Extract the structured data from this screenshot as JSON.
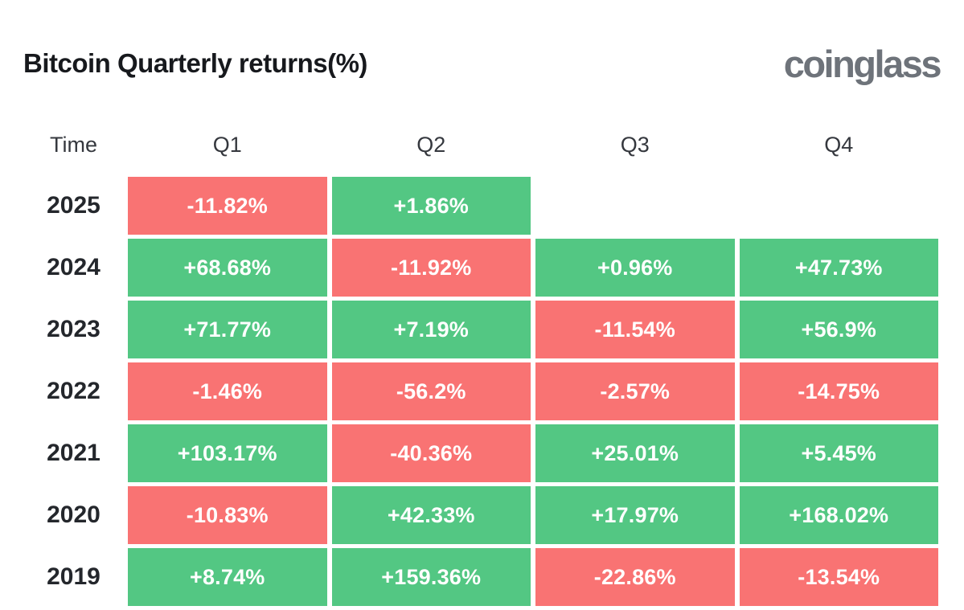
{
  "header": {
    "title": "Bitcoin Quarterly returns(%)",
    "logo_text": "coinglass"
  },
  "colors": {
    "positive": "#53c783",
    "negative": "#f97373",
    "cell_text": "#ffffff",
    "title_text": "#17191d",
    "logo_text": "#6e737a",
    "background": "#ffffff"
  },
  "table": {
    "columns": [
      "Time",
      "Q1",
      "Q2",
      "Q3",
      "Q4"
    ],
    "rows": [
      {
        "year": "2025",
        "cells": [
          {
            "value": "-11.82%",
            "sign": "negative"
          },
          {
            "value": "+1.86%",
            "sign": "positive"
          },
          null,
          null
        ]
      },
      {
        "year": "2024",
        "cells": [
          {
            "value": "+68.68%",
            "sign": "positive"
          },
          {
            "value": "-11.92%",
            "sign": "negative"
          },
          {
            "value": "+0.96%",
            "sign": "positive"
          },
          {
            "value": "+47.73%",
            "sign": "positive"
          }
        ]
      },
      {
        "year": "2023",
        "cells": [
          {
            "value": "+71.77%",
            "sign": "positive"
          },
          {
            "value": "+7.19%",
            "sign": "positive"
          },
          {
            "value": "-11.54%",
            "sign": "negative"
          },
          {
            "value": "+56.9%",
            "sign": "positive"
          }
        ]
      },
      {
        "year": "2022",
        "cells": [
          {
            "value": "-1.46%",
            "sign": "negative"
          },
          {
            "value": "-56.2%",
            "sign": "negative"
          },
          {
            "value": "-2.57%",
            "sign": "negative"
          },
          {
            "value": "-14.75%",
            "sign": "negative"
          }
        ]
      },
      {
        "year": "2021",
        "cells": [
          {
            "value": "+103.17%",
            "sign": "positive"
          },
          {
            "value": "-40.36%",
            "sign": "negative"
          },
          {
            "value": "+25.01%",
            "sign": "positive"
          },
          {
            "value": "+5.45%",
            "sign": "positive"
          }
        ]
      },
      {
        "year": "2020",
        "cells": [
          {
            "value": "-10.83%",
            "sign": "negative"
          },
          {
            "value": "+42.33%",
            "sign": "positive"
          },
          {
            "value": "+17.97%",
            "sign": "positive"
          },
          {
            "value": "+168.02%",
            "sign": "positive"
          }
        ]
      },
      {
        "year": "2019",
        "cells": [
          {
            "value": "+8.74%",
            "sign": "positive"
          },
          {
            "value": "+159.36%",
            "sign": "positive"
          },
          {
            "value": "-22.86%",
            "sign": "negative"
          },
          {
            "value": "-13.54%",
            "sign": "negative"
          }
        ]
      }
    ]
  },
  "chart_data": {
    "type": "heatmap",
    "title": "Bitcoin Quarterly returns(%)",
    "columns": [
      "Q1",
      "Q2",
      "Q3",
      "Q4"
    ],
    "rows": [
      "2025",
      "2024",
      "2023",
      "2022",
      "2021",
      "2020",
      "2019"
    ],
    "values": [
      [
        -11.82,
        1.86,
        null,
        null
      ],
      [
        68.68,
        -11.92,
        0.96,
        47.73
      ],
      [
        71.77,
        7.19,
        -11.54,
        56.9
      ],
      [
        -1.46,
        -56.2,
        -2.57,
        -14.75
      ],
      [
        103.17,
        -40.36,
        25.01,
        5.45
      ],
      [
        -10.83,
        42.33,
        17.97,
        168.02
      ],
      [
        8.74,
        159.36,
        -22.86,
        -13.54
      ]
    ],
    "unit": "%",
    "color_rule": "positive values green, negative values red",
    "legend_position": "none",
    "grid": false
  }
}
